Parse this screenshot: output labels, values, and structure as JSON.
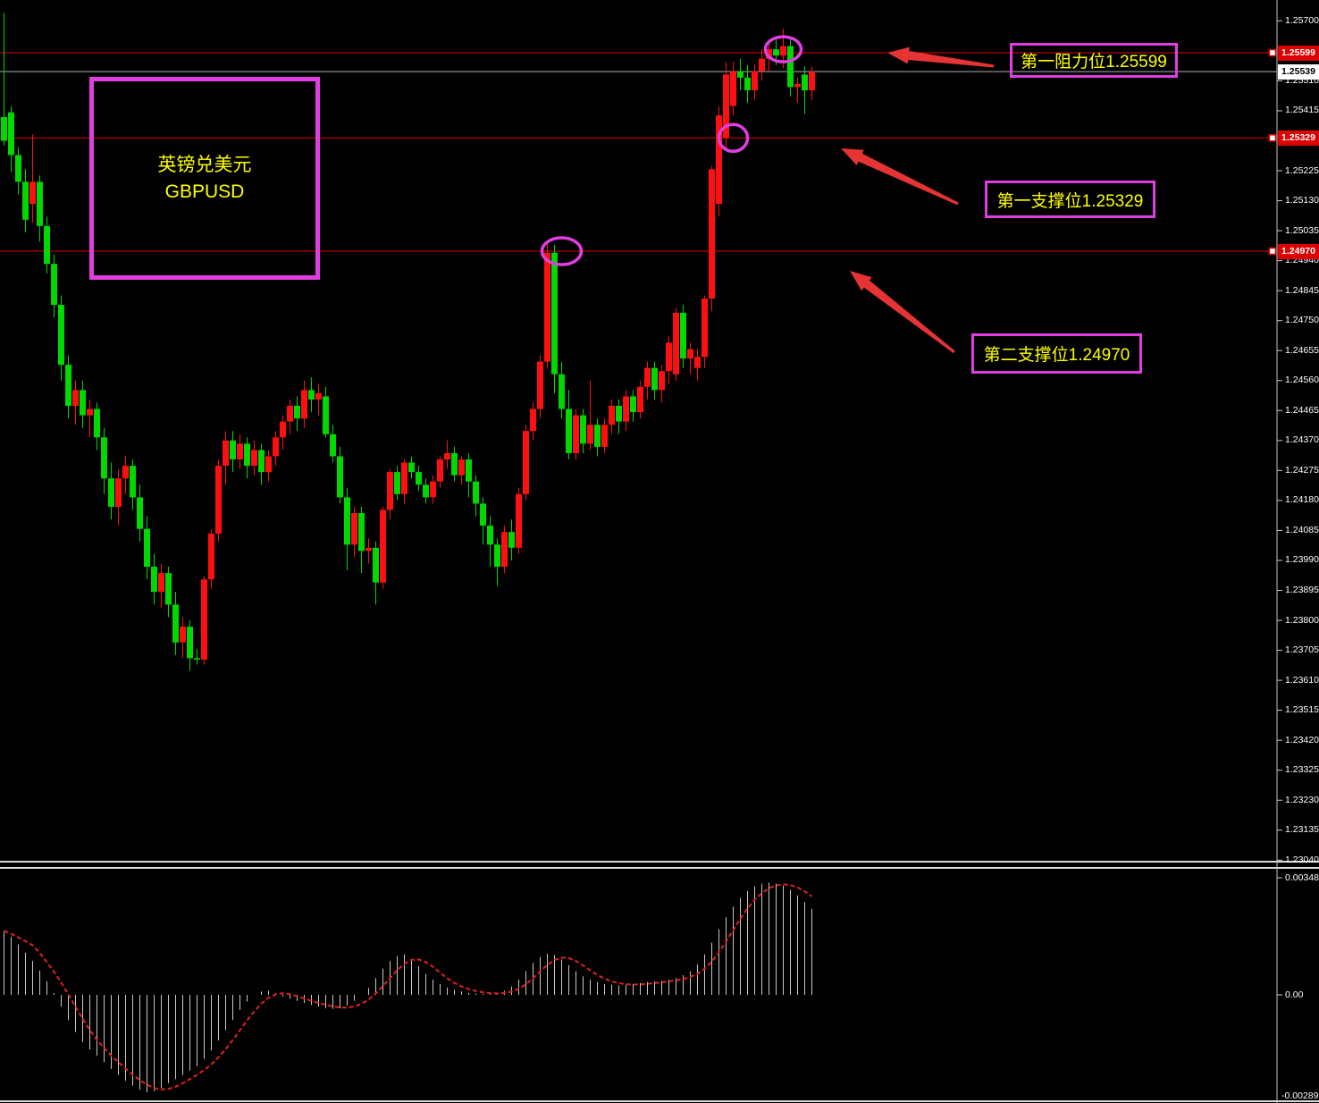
{
  "window": {
    "kind": "forex-trading-chart",
    "background": "#000000"
  },
  "instrument_box": {
    "line1": "英镑兑美元",
    "line2": "GBPUSD"
  },
  "annotations": {
    "resistance1": {
      "label": "第一阻力位1.25599",
      "price": 1.25599
    },
    "support1": {
      "label": "第一支撑位1.25329",
      "price": 1.25329
    },
    "support2": {
      "label": "第二支撑位1.24970",
      "price": 1.2497
    }
  },
  "price_axis": {
    "ticks": [
      "1.25700",
      "1.25510",
      "1.25415",
      "1.25225",
      "1.25130",
      "1.25035",
      "1.24940",
      "1.24845",
      "1.24750",
      "1.24655",
      "1.24560",
      "1.24465",
      "1.24370",
      "1.24275",
      "1.24180",
      "1.24085",
      "1.23990",
      "1.23895",
      "1.23800",
      "1.23705",
      "1.23610",
      "1.23515",
      "1.23420",
      "1.23325",
      "1.23230",
      "1.23135",
      "1.23040"
    ],
    "badges": [
      {
        "value": "1.25599",
        "type": "level"
      },
      {
        "value": "1.25539",
        "type": "current"
      },
      {
        "value": "1.25329",
        "type": "level"
      },
      {
        "value": "1.24970",
        "type": "level"
      }
    ]
  },
  "macd_axis": {
    "max": "0.00348",
    "zero": "0.00",
    "min": "-0.002891"
  },
  "colors": {
    "bull": "#ff1010",
    "bear": "#00d800",
    "level_line": "#dd0000",
    "current_line": "#a8b0b8",
    "magenta": "#e13ee1",
    "yellow": "#ffff00",
    "arrow": "#e63434",
    "hist": "#c8c8c8",
    "signal": "#e02020",
    "axis_border": "#c8c8c8",
    "axis_text": "#ffffff"
  },
  "chart_data": {
    "type": "candlestick",
    "instrument": "GBPUSD",
    "title": "英镑兑美元 GBPUSD",
    "legend_position": "none",
    "grid": false,
    "price_range_visible": [
      1.2304,
      1.257
    ],
    "current_price": 1.25539,
    "levels": [
      {
        "name": "第一阻力位",
        "price": 1.25599
      },
      {
        "name": "第一支撑位",
        "price": 1.25329
      },
      {
        "name": "第二支撑位",
        "price": 1.2497
      }
    ],
    "highlights": [
      {
        "candle_index": 109,
        "price": 1.2561
      },
      {
        "candle_index": 102,
        "price": 1.25329
      },
      {
        "candle_index": 78,
        "price": 1.2497
      }
    ],
    "candles_ohlc": [
      [
        1.25395,
        1.25725,
        1.25305,
        1.2532
      ],
      [
        1.2541,
        1.2543,
        1.2522,
        1.25275
      ],
      [
        1.25275,
        1.253,
        1.2515,
        1.2519
      ],
      [
        1.2519,
        1.2523,
        1.2503,
        1.2507
      ],
      [
        1.2512,
        1.2534,
        1.2506,
        1.2519
      ],
      [
        1.2519,
        1.2521,
        1.25,
        1.2505
      ],
      [
        1.2505,
        1.2508,
        1.249,
        1.2493
      ],
      [
        1.2493,
        1.2496,
        1.2476,
        1.248
      ],
      [
        1.248,
        1.2483,
        1.2456,
        1.2461
      ],
      [
        1.2461,
        1.2464,
        1.2444,
        1.2448
      ],
      [
        1.2448,
        1.2456,
        1.2442,
        1.2453
      ],
      [
        1.2453,
        1.2456,
        1.2441,
        1.2445
      ],
      [
        1.2445,
        1.245,
        1.2438,
        1.2447
      ],
      [
        1.2447,
        1.2449,
        1.2434,
        1.2438
      ],
      [
        1.2438,
        1.2441,
        1.242,
        1.2425
      ],
      [
        1.2425,
        1.243,
        1.2412,
        1.2416
      ],
      [
        1.2416,
        1.2428,
        1.241,
        1.2425
      ],
      [
        1.2425,
        1.2432,
        1.242,
        1.2429
      ],
      [
        1.2429,
        1.2431,
        1.2415,
        1.2419
      ],
      [
        1.2419,
        1.2423,
        1.2405,
        1.2409
      ],
      [
        1.2409,
        1.2413,
        1.2393,
        1.2397
      ],
      [
        1.2397,
        1.2401,
        1.2385,
        1.2389
      ],
      [
        1.2389,
        1.2398,
        1.2384,
        1.2395
      ],
      [
        1.2395,
        1.2397,
        1.2381,
        1.2385
      ],
      [
        1.2385,
        1.2389,
        1.2369,
        1.2373
      ],
      [
        1.2373,
        1.2381,
        1.2368,
        1.2378
      ],
      [
        1.2378,
        1.238,
        1.2364,
        1.2368
      ],
      [
        1.2368,
        1.2371,
        1.2366,
        1.23676
      ],
      [
        1.23676,
        1.2394,
        1.2366,
        1.2393
      ],
      [
        1.2393,
        1.2409,
        1.239,
        1.24075
      ],
      [
        1.24075,
        1.2431,
        1.2405,
        1.2429
      ],
      [
        1.2429,
        1.244,
        1.2423,
        1.2437
      ],
      [
        1.2437,
        1.244,
        1.2427,
        1.2431
      ],
      [
        1.2431,
        1.2439,
        1.2428,
        1.2436
      ],
      [
        1.2436,
        1.2438,
        1.2425,
        1.2429
      ],
      [
        1.2429,
        1.2437,
        1.2426,
        1.2434
      ],
      [
        1.2434,
        1.2436,
        1.2423,
        1.2427
      ],
      [
        1.2427,
        1.2434,
        1.2424,
        1.2432
      ],
      [
        1.2432,
        1.244,
        1.2429,
        1.2438
      ],
      [
        1.2438,
        1.2445,
        1.2434,
        1.2443
      ],
      [
        1.2443,
        1.245,
        1.2439,
        1.2448
      ],
      [
        1.2448,
        1.2451,
        1.244,
        1.2444
      ],
      [
        1.2444,
        1.2456,
        1.2441,
        1.2453
      ],
      [
        1.2453,
        1.2457,
        1.2446,
        1.245
      ],
      [
        1.245,
        1.2455,
        1.2445,
        1.2452
      ],
      [
        1.2451,
        1.2454,
        1.2438,
        1.2439
      ],
      [
        1.2439,
        1.2442,
        1.243,
        1.2432
      ],
      [
        1.2432,
        1.2435,
        1.2417,
        1.2419
      ],
      [
        1.2419,
        1.2422,
        1.2396,
        1.2404
      ],
      [
        1.2404,
        1.2416,
        1.24,
        1.2414
      ],
      [
        1.2414,
        1.2416,
        1.2395,
        1.2402
      ],
      [
        1.2402,
        1.2406,
        1.2398,
        1.2403
      ],
      [
        1.2403,
        1.2405,
        1.2385,
        1.2392
      ],
      [
        1.2392,
        1.2416,
        1.239,
        1.2415
      ],
      [
        1.2415,
        1.2428,
        1.2412,
        1.2427
      ],
      [
        1.2427,
        1.2429,
        1.2418,
        1.242
      ],
      [
        1.242,
        1.2431,
        1.2417,
        1.243
      ],
      [
        1.243,
        1.2432,
        1.2425,
        1.2427
      ],
      [
        1.2427,
        1.2429,
        1.2421,
        1.2423
      ],
      [
        1.2423,
        1.2425,
        1.2417,
        1.2419
      ],
      [
        1.2419,
        1.2426,
        1.2417,
        1.2424
      ],
      [
        1.2424,
        1.2432,
        1.2422,
        1.2431
      ],
      [
        1.2431,
        1.2437,
        1.2428,
        1.2433
      ],
      [
        1.2433,
        1.2435,
        1.2424,
        1.2426
      ],
      [
        1.2426,
        1.2432,
        1.2423,
        1.2431
      ],
      [
        1.2431,
        1.2433,
        1.2419,
        1.2424
      ],
      [
        1.2424,
        1.2426,
        1.2413,
        1.2417
      ],
      [
        1.2417,
        1.2419,
        1.2404,
        1.241
      ],
      [
        1.241,
        1.2413,
        1.2397,
        1.2404
      ],
      [
        1.2404,
        1.2406,
        1.2391,
        1.2397
      ],
      [
        1.2397,
        1.241,
        1.2395,
        1.2408
      ],
      [
        1.2408,
        1.2412,
        1.2399,
        1.2403
      ],
      [
        1.2403,
        1.2422,
        1.2401,
        1.242
      ],
      [
        1.242,
        1.2442,
        1.2418,
        1.244
      ],
      [
        1.244,
        1.2449,
        1.2437,
        1.2447
      ],
      [
        1.2447,
        1.2464,
        1.2444,
        1.2462
      ],
      [
        1.2462,
        1.25,
        1.246,
        1.24965
      ],
      [
        1.24965,
        1.2499,
        1.2452,
        1.2458
      ],
      [
        1.2458,
        1.2462,
        1.2444,
        1.2447
      ],
      [
        1.2447,
        1.2453,
        1.2431,
        1.2433
      ],
      [
        1.2433,
        1.2447,
        1.2431,
        1.2445
      ],
      [
        1.2445,
        1.2447,
        1.2433,
        1.2436
      ],
      [
        1.2436,
        1.2456,
        1.2434,
        1.2442
      ],
      [
        1.2442,
        1.2444,
        1.2432,
        1.2435
      ],
      [
        1.2435,
        1.2444,
        1.2433,
        1.2442
      ],
      [
        1.2442,
        1.245,
        1.2439,
        1.2448
      ],
      [
        1.2448,
        1.245,
        1.2439,
        1.2443
      ],
      [
        1.2443,
        1.2453,
        1.244,
        1.2451
      ],
      [
        1.2451,
        1.2453,
        1.2443,
        1.2446
      ],
      [
        1.2446,
        1.2456,
        1.2444,
        1.2454
      ],
      [
        1.2454,
        1.2462,
        1.245,
        1.246
      ],
      [
        1.246,
        1.2462,
        1.245,
        1.2453
      ],
      [
        1.2453,
        1.2461,
        1.2449,
        1.2459
      ],
      [
        1.2459,
        1.247,
        1.2455,
        1.2468
      ],
      [
        1.2458,
        1.2479,
        1.2456,
        1.24775
      ],
      [
        1.24775,
        1.248,
        1.246,
        1.2463
      ],
      [
        1.2463,
        1.2468,
        1.2458,
        1.2466
      ],
      [
        1.246,
        1.2466,
        1.2456,
        1.24635
      ],
      [
        1.24635,
        1.2483,
        1.246,
        1.2482
      ],
      [
        1.2482,
        1.2524,
        1.2478,
        1.2523
      ],
      [
        1.2512,
        1.2543,
        1.2508,
        1.254
      ],
      [
        1.2533,
        1.2557,
        1.2529,
        1.2553
      ],
      [
        1.2543,
        1.2557,
        1.254,
        1.2554
      ],
      [
        1.2554,
        1.2558,
        1.2548,
        1.2552
      ],
      [
        1.2552,
        1.2556,
        1.2544,
        1.2548
      ],
      [
        1.2548,
        1.2556,
        1.2545,
        1.2554
      ],
      [
        1.2554,
        1.2561,
        1.2551,
        1.2558
      ],
      [
        1.2558,
        1.2564,
        1.2554,
        1.2561
      ],
      [
        1.2561,
        1.2564,
        1.2556,
        1.2559
      ],
      [
        1.2559,
        1.25675,
        1.2555,
        1.2562
      ],
      [
        1.2562,
        1.2565,
        1.2546,
        1.2549
      ],
      [
        1.2549,
        1.2552,
        1.2544,
        1.255
      ],
      [
        1.2553,
        1.25555,
        1.25405,
        1.2548
      ],
      [
        1.2548,
        1.25555,
        1.2545,
        1.25539
      ]
    ],
    "macd": {
      "type": "histogram_with_signal",
      "axis_labels": {
        "max": "0.00348",
        "zero": "0.00",
        "min": "-0.002891"
      },
      "histogram": [
        0.0019,
        0.00172,
        0.0015,
        0.00125,
        0.001,
        0.00072,
        0.0004,
        5e-05,
        -0.00035,
        -0.00075,
        -0.0011,
        -0.0014,
        -0.00162,
        -0.0018,
        -0.002,
        -0.0022,
        -0.00238,
        -0.00255,
        -0.0027,
        -0.00282,
        -0.00289,
        -0.00286,
        -0.00276,
        -0.00262,
        -0.0025,
        -0.00238,
        -0.00225,
        -0.00212,
        -0.0019,
        -0.00165,
        -0.00135,
        -0.00105,
        -0.00075,
        -0.00045,
        -0.0002,
        0.0,
        0.0001,
        0.00012,
        5e-05,
        -5e-05,
        -0.00012,
        -0.00018,
        -0.00024,
        -0.0003,
        -0.00035,
        -0.0004,
        -0.00042,
        -0.0004,
        -0.00032,
        -0.00018,
        0.0,
        0.0002,
        0.0005,
        0.00078,
        0.001,
        0.00115,
        0.0012,
        0.00105,
        0.00085,
        0.00062,
        0.00045,
        0.00032,
        0.00022,
        0.00015,
        0.0001,
        6e-05,
        4e-05,
        3e-05,
        3e-05,
        5e-05,
        0.00012,
        0.00025,
        0.00045,
        0.0007,
        0.00095,
        0.00112,
        0.00122,
        0.00118,
        0.00105,
        0.00088,
        0.0007,
        0.00055,
        0.00045,
        0.00038,
        0.00032,
        0.0003,
        0.00028,
        0.0003,
        0.00032,
        0.00035,
        0.00038,
        0.0004,
        0.00042,
        0.00045,
        0.0005,
        0.00058,
        0.0007,
        0.0009,
        0.0012,
        0.00155,
        0.00195,
        0.0023,
        0.00262,
        0.00288,
        0.00308,
        0.00322,
        0.0033,
        0.00333,
        0.0033,
        0.00324,
        0.00312,
        0.00295,
        0.00275,
        0.00255
      ],
      "signal_smoothing": 5
    }
  }
}
